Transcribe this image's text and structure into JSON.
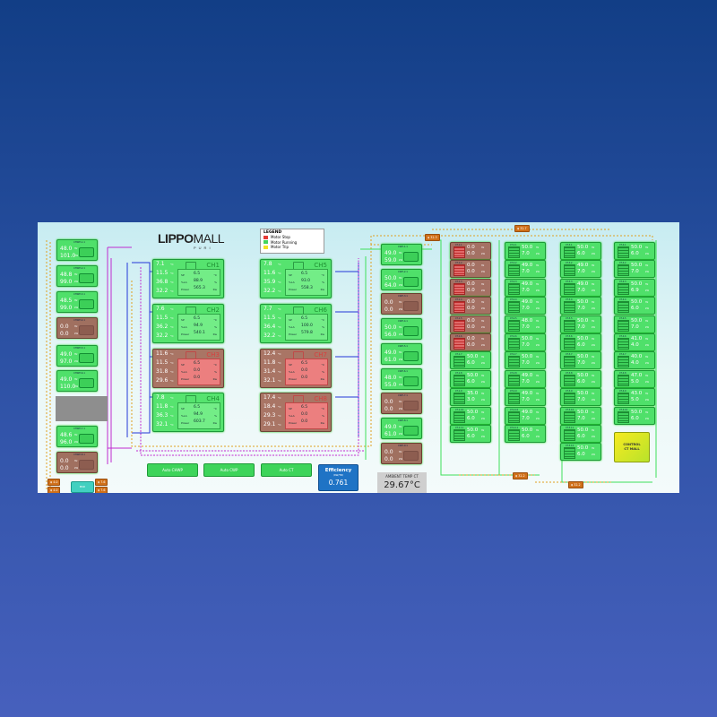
{
  "brand": {
    "name_bold": "LIPPO",
    "name_light": "MALL",
    "sub": "PURI"
  },
  "legend": {
    "title": "LEGEND",
    "items": [
      {
        "label": "Motor Stop",
        "color": "#e53935"
      },
      {
        "label": "Motor Running",
        "color": "#43d45c"
      },
      {
        "label": "Motor Trip",
        "color": "#f2e221"
      }
    ]
  },
  "pumps_left": [
    {
      "tag": "CHWP-1.1",
      "v1": "48.0",
      "v2": "101.0",
      "state": "run"
    },
    {
      "tag": "CHWP-2.1",
      "v1": "48.8",
      "v2": "99.0",
      "state": "run"
    },
    {
      "tag": "CHWP-3.1",
      "v1": "48.5",
      "v2": "99.0",
      "state": "run"
    },
    {
      "tag": "CHWP-4.1",
      "v1": "0.0",
      "v2": "0.0",
      "state": "stop"
    },
    {
      "tag": "CHWP-5.1",
      "v1": "49.0",
      "v2": "97.0",
      "state": "run"
    },
    {
      "tag": "CHWP-6.1",
      "v1": "49.0",
      "v2": "110.0",
      "state": "run"
    },
    {
      "tag": "CHWP-7.1",
      "v1": "48.6",
      "v2": "96.0",
      "state": "run"
    },
    {
      "tag": "CHWP-8.1",
      "v1": "0.0",
      "v2": "0.0",
      "state": "stop"
    }
  ],
  "chillers": [
    {
      "name": "CH1",
      "t1": "7.1",
      "t2": "11.5",
      "t3": "36.8",
      "t4": "32.2",
      "sp": "6.5",
      "rla": "88.9",
      "power": "565.3",
      "state": "run"
    },
    {
      "name": "CH2",
      "t1": "7.6",
      "t2": "11.5",
      "t3": "36.2",
      "t4": "32.2",
      "sp": "6.5",
      "rla": "94.9",
      "power": "540.1",
      "state": "run"
    },
    {
      "name": "CH3",
      "t1": "11.6",
      "t2": "11.5",
      "t3": "31.8",
      "t4": "29.6",
      "sp": "6.5",
      "rla": "0.0",
      "power": "0.0",
      "state": "stop"
    },
    {
      "name": "CH4",
      "t1": "7.8",
      "t2": "11.8",
      "t3": "36.3",
      "t4": "32.1",
      "sp": "6.5",
      "rla": "94.9",
      "power": "603.7",
      "state": "run"
    },
    {
      "name": "CH5",
      "t1": "7.8",
      "t2": "11.6",
      "t3": "35.9",
      "t4": "32.2",
      "sp": "6.5",
      "rla": "93.0",
      "power": "558.3",
      "state": "run"
    },
    {
      "name": "CH6",
      "t1": "7.7",
      "t2": "11.5",
      "t3": "36.4",
      "t4": "32.2",
      "sp": "6.5",
      "rla": "100.0",
      "power": "579.8",
      "state": "run"
    },
    {
      "name": "CH7",
      "t1": "12.4",
      "t2": "11.8",
      "t3": "31.4",
      "t4": "32.1",
      "sp": "6.5",
      "rla": "0.0",
      "power": "0.0",
      "state": "stop"
    },
    {
      "name": "CH8",
      "t1": "17.4",
      "t2": "18.4",
      "t3": "29.3",
      "t4": "29.1",
      "sp": "6.5",
      "rla": "0.0",
      "power": "0.0",
      "state": "stop"
    }
  ],
  "chiller_labels": {
    "sp": "SP",
    "rla": "%LA",
    "power": "Power",
    "deg": "°C",
    "pct": "%",
    "kw": "Kw"
  },
  "pumps_cwp": [
    {
      "tag": "CWP-1.1",
      "v1": "49.0",
      "v2": "59.0",
      "state": "run"
    },
    {
      "tag": "CWP-2.1",
      "v1": "50.0",
      "v2": "64.0",
      "state": "run"
    },
    {
      "tag": "CWP-3.1",
      "v1": "0.0",
      "v2": "0.0",
      "state": "stop"
    },
    {
      "tag": "CWP-4.1",
      "v1": "50.0",
      "v2": "56.0",
      "state": "run"
    },
    {
      "tag": "CWP-5.1",
      "v1": "49.0",
      "v2": "61.0",
      "state": "run"
    },
    {
      "tag": "CWP-6.1",
      "v1": "48.0",
      "v2": "55.0",
      "state": "run"
    },
    {
      "tag": "CWP-7.1",
      "v1": "0.0",
      "v2": "0.0",
      "state": "stop"
    },
    {
      "tag": "CWP-8.1",
      "v1": "49.0",
      "v2": "61.0",
      "state": "run"
    },
    {
      "tag": "CWP-9.1",
      "v1": "0.0",
      "v2": "0.0",
      "state": "stop"
    }
  ],
  "ct_units": {
    "u1": "Hz",
    "u2": "kW"
  },
  "ct_columns": [
    [
      {
        "tag": "CT-1.1",
        "v1": "0.0",
        "v2": "0.0",
        "state": "stop"
      },
      {
        "tag": "CT-1.2",
        "v1": "0.0",
        "v2": "0.0",
        "state": "stop"
      },
      {
        "tag": "CT-1.3",
        "v1": "0.0",
        "v2": "0.0",
        "state": "stop"
      },
      {
        "tag": "CT-1.4",
        "v1": "0.0",
        "v2": "0.0",
        "state": "stop"
      },
      {
        "tag": "CT-1.5",
        "v1": "0.0",
        "v2": "0.0",
        "state": "stop"
      },
      {
        "tag": "CT-1.6",
        "v1": "0.0",
        "v2": "0.0",
        "state": "stop"
      },
      {
        "tag": "CT-1.7",
        "v1": "50.0",
        "v2": "6.0",
        "state": "run"
      },
      {
        "tag": "CT-1.8",
        "v1": "50.0",
        "v2": "6.0",
        "state": "run"
      },
      {
        "tag": "CT-1.9",
        "v1": "35.0",
        "v2": "3.0",
        "state": "run"
      },
      {
        "tag": "CT-1.10",
        "v1": "50.0",
        "v2": "6.0",
        "state": "run"
      },
      {
        "tag": "CT-1.11",
        "v1": "50.0",
        "v2": "6.0",
        "state": "run"
      }
    ],
    [
      {
        "tag": "CT-2.1",
        "v1": "50.0",
        "v2": "7.0",
        "state": "run"
      },
      {
        "tag": "CT-2.2",
        "v1": "49.0",
        "v2": "7.0",
        "state": "run"
      },
      {
        "tag": "CT-2.3",
        "v1": "49.0",
        "v2": "7.0",
        "state": "run"
      },
      {
        "tag": "CT-2.4",
        "v1": "49.0",
        "v2": "7.0",
        "state": "run"
      },
      {
        "tag": "CT-2.5",
        "v1": "48.0",
        "v2": "7.0",
        "state": "run"
      },
      {
        "tag": "CT-2.6",
        "v1": "50.0",
        "v2": "7.0",
        "state": "run"
      },
      {
        "tag": "CT-2.7",
        "v1": "50.0",
        "v2": "7.0",
        "state": "run"
      },
      {
        "tag": "CT-2.8",
        "v1": "49.0",
        "v2": "7.0",
        "state": "run"
      },
      {
        "tag": "CT-2.9",
        "v1": "49.0",
        "v2": "7.0",
        "state": "run"
      },
      {
        "tag": "CT-2.10",
        "v1": "49.0",
        "v2": "7.0",
        "state": "run"
      },
      {
        "tag": "CT-2.11",
        "v1": "50.0",
        "v2": "6.0",
        "state": "run"
      }
    ],
    [
      {
        "tag": "CT-3.1",
        "v1": "50.0",
        "v2": "6.0",
        "state": "run"
      },
      {
        "tag": "CT-3.2",
        "v1": "49.0",
        "v2": "7.0",
        "state": "run"
      },
      {
        "tag": "CT-3.3",
        "v1": "49.0",
        "v2": "7.0",
        "state": "run"
      },
      {
        "tag": "CT-3.4",
        "v1": "50.0",
        "v2": "7.0",
        "state": "run"
      },
      {
        "tag": "CT-3.5",
        "v1": "50.0",
        "v2": "7.0",
        "state": "run"
      },
      {
        "tag": "CT-3.6",
        "v1": "50.0",
        "v2": "6.0",
        "state": "run"
      },
      {
        "tag": "CT-3.7",
        "v1": "50.0",
        "v2": "7.0",
        "state": "run"
      },
      {
        "tag": "CT-3.8",
        "v1": "50.0",
        "v2": "6.0",
        "state": "run"
      },
      {
        "tag": "CT-3.9",
        "v1": "50.0",
        "v2": "7.0",
        "state": "run"
      },
      {
        "tag": "CT-3.10",
        "v1": "50.0",
        "v2": "7.0",
        "state": "run"
      },
      {
        "tag": "CT-3.11",
        "v1": "50.0",
        "v2": "6.0",
        "state": "run"
      },
      {
        "tag": "CT-3.12",
        "v1": "50.0",
        "v2": "6.0",
        "state": "run"
      }
    ],
    [
      {
        "tag": "CT-4.1",
        "v1": "50.0",
        "v2": "6.0",
        "state": "run"
      },
      {
        "tag": "CT-4.2",
        "v1": "50.0",
        "v2": "7.0",
        "state": "run"
      },
      {
        "tag": "CT-4.3",
        "v1": "50.0",
        "v2": "6.9",
        "state": "run"
      },
      {
        "tag": "CT-4.4",
        "v1": "50.0",
        "v2": "6.0",
        "state": "run"
      },
      {
        "tag": "CT-4.5",
        "v1": "50.0",
        "v2": "7.0",
        "state": "run"
      },
      {
        "tag": "CT-4.6",
        "v1": "41.0",
        "v2": "4.0",
        "state": "run"
      },
      {
        "tag": "CT-4.7",
        "v1": "40.0",
        "v2": "4.0",
        "state": "run"
      },
      {
        "tag": "CT-4.8",
        "v1": "47.0",
        "v2": "5.0",
        "state": "run"
      },
      {
        "tag": "CT-4.9",
        "v1": "43.0",
        "v2": "5.0",
        "state": "run"
      },
      {
        "tag": "CT-4.10",
        "v1": "50.0",
        "v2": "6.0",
        "state": "run"
      }
    ]
  ],
  "buttons": {
    "auto_chwp": "Auto CHWP",
    "auto_cwp": "Auto CWP",
    "auto_ct": "Auto CT"
  },
  "efficiency": {
    "title": "Efficiency",
    "sub": "(KW/TR)",
    "value": "0.761"
  },
  "ambient": {
    "title": "AMBIENT TEMP CT",
    "value": "29.67°C"
  },
  "control_ct": {
    "line1": "CONTROL",
    "line2": "CT MALL"
  },
  "tags": {
    "t_top1": "32.3",
    "t_top2": "32.7",
    "t_bot1": "32.2",
    "t_bot2": "32.2",
    "l1": "4.0",
    "l2": "4.0",
    "l3": "7.6",
    "l4": "7.6"
  },
  "small_ctrl": "BSD"
}
